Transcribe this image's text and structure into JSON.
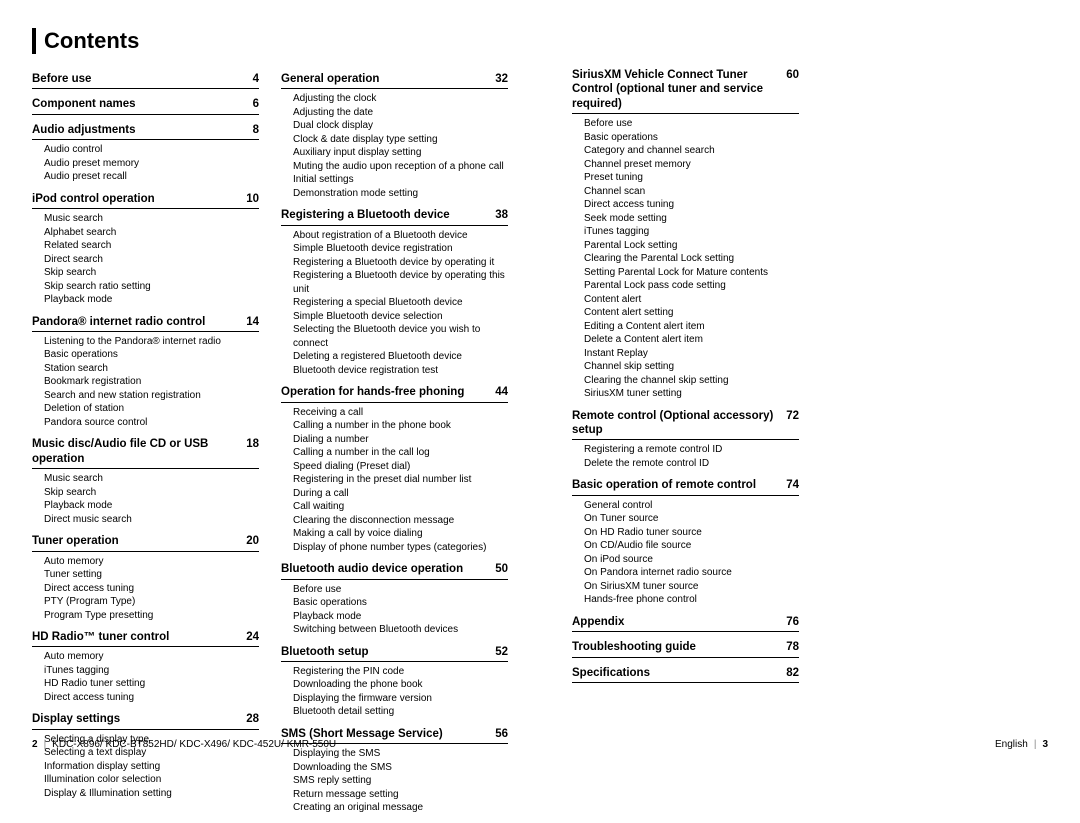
{
  "title": "Contents",
  "footer": {
    "leftPage": "2",
    "models": "KDC-X896/ KDC-BT852HD/ KDC-X496/ KDC-452U/ KMR-550U",
    "rightLang": "English",
    "rightPage": "3"
  },
  "columns": [
    [
      {
        "t": "Before use",
        "p": "4",
        "s": []
      },
      {
        "t": "Component names",
        "p": "6",
        "s": []
      },
      {
        "t": "Audio adjustments",
        "p": "8",
        "s": [
          "Audio control",
          "Audio preset memory",
          "Audio preset recall"
        ]
      },
      {
        "t": "iPod control operation",
        "p": "10",
        "s": [
          "Music search",
          "Alphabet search",
          "Related search",
          "Direct search",
          "Skip search",
          "Skip search ratio setting",
          "Playback mode"
        ]
      },
      {
        "t": "Pandora® internet radio control",
        "p": "14",
        "s": [
          "Listening to the Pandora® internet radio",
          "Basic operations",
          "Station search",
          "Bookmark registration",
          "Search and new station registration",
          "Deletion of station",
          "Pandora source control"
        ]
      },
      {
        "t": "Music disc/Audio file CD or USB operation",
        "p": "18",
        "s": [
          "Music search",
          "Skip search",
          "Playback mode",
          "Direct music search"
        ]
      },
      {
        "t": "Tuner operation",
        "p": "20",
        "s": [
          "Auto memory",
          "Tuner setting",
          "Direct access tuning",
          "PTY (Program Type)",
          "Program Type presetting"
        ]
      },
      {
        "t": "HD Radio™ tuner control",
        "p": "24",
        "s": [
          "Auto memory",
          "iTunes tagging",
          "HD Radio tuner setting",
          "Direct access tuning"
        ]
      },
      {
        "t": "Display settings",
        "p": "28",
        "s": [
          "Selecting a display type",
          "Selecting a text display",
          "Information display setting",
          "Illumination color selection",
          "Display & Illumination setting"
        ]
      }
    ],
    [
      {
        "t": "General operation",
        "p": "32",
        "s": [
          "Adjusting the clock",
          "Adjusting the date",
          "Dual clock display",
          "Clock & date display type setting",
          "Auxiliary input display setting",
          "Muting the audio upon reception of a phone call",
          "Initial settings",
          "Demonstration mode setting"
        ]
      },
      {
        "t": "Registering a Bluetooth device",
        "p": "38",
        "s": [
          "About registration of a Bluetooth device",
          "Simple Bluetooth device registration",
          "Registering a Bluetooth device by operating it",
          "Registering a Bluetooth device by operating this unit",
          "Registering a special Bluetooth device",
          "Simple Bluetooth device selection",
          "Selecting the Bluetooth device you wish to connect",
          "Deleting a registered Bluetooth device",
          "Bluetooth device registration test"
        ]
      },
      {
        "t": "Operation for hands-free phoning",
        "p": "44",
        "s": [
          "Receiving a call",
          "Calling a number in the phone book",
          "Dialing a number",
          "Calling a number in the call log",
          "Speed dialing (Preset dial)",
          "Registering in the preset dial number list",
          "During a call",
          "Call waiting",
          "Clearing the disconnection message",
          "Making a call by voice dialing",
          "Display of phone number types (categories)"
        ]
      },
      {
        "t": "Bluetooth audio device operation",
        "p": "50",
        "s": [
          "Before use",
          "Basic operations",
          "Playback mode",
          "Switching between Bluetooth devices"
        ]
      },
      {
        "t": "Bluetooth setup",
        "p": "52",
        "s": [
          "Registering the PIN code",
          "Downloading the phone book",
          "Displaying the firmware version",
          "Bluetooth detail setting"
        ]
      },
      {
        "t": "SMS (Short Message Service)",
        "p": "56",
        "s": [
          "Displaying the SMS",
          "Downloading the SMS",
          "SMS reply setting",
          "Return message setting",
          "Creating an original message"
        ]
      }
    ],
    [
      {
        "t": "SiriusXM Vehicle Connect Tuner Control (optional tuner and service required)",
        "p": "60",
        "s": [
          "Before use",
          "Basic operations",
          "Category and channel search",
          "Channel preset memory",
          "Preset tuning",
          "Channel scan",
          "Direct access tuning",
          "Seek mode setting",
          "iTunes tagging",
          "Parental Lock setting",
          "Clearing the Parental Lock setting",
          "Setting Parental Lock for Mature contents",
          "Parental Lock pass code setting",
          "Content alert",
          "Content alert setting",
          "Editing a Content alert item",
          "Delete a Content alert item",
          "Instant Replay",
          "Channel skip setting",
          "Clearing the channel skip setting",
          "SiriusXM tuner setting"
        ]
      },
      {
        "t": "Remote control (Optional accessory) setup",
        "p": "72",
        "s": [
          "Registering a remote control ID",
          "Delete the remote control ID"
        ]
      },
      {
        "t": "Basic operation of remote control",
        "p": "74",
        "s": [
          "General control",
          "On Tuner source",
          "On HD Radio tuner source",
          "On CD/Audio file source",
          "On iPod source",
          "On Pandora internet radio source",
          "On SiriusXM tuner source",
          "Hands-free phone control"
        ]
      },
      {
        "t": "Appendix",
        "p": "76",
        "s": []
      },
      {
        "t": "Troubleshooting guide",
        "p": "78",
        "s": []
      },
      {
        "t": "Specifications",
        "p": "82",
        "s": []
      }
    ]
  ]
}
